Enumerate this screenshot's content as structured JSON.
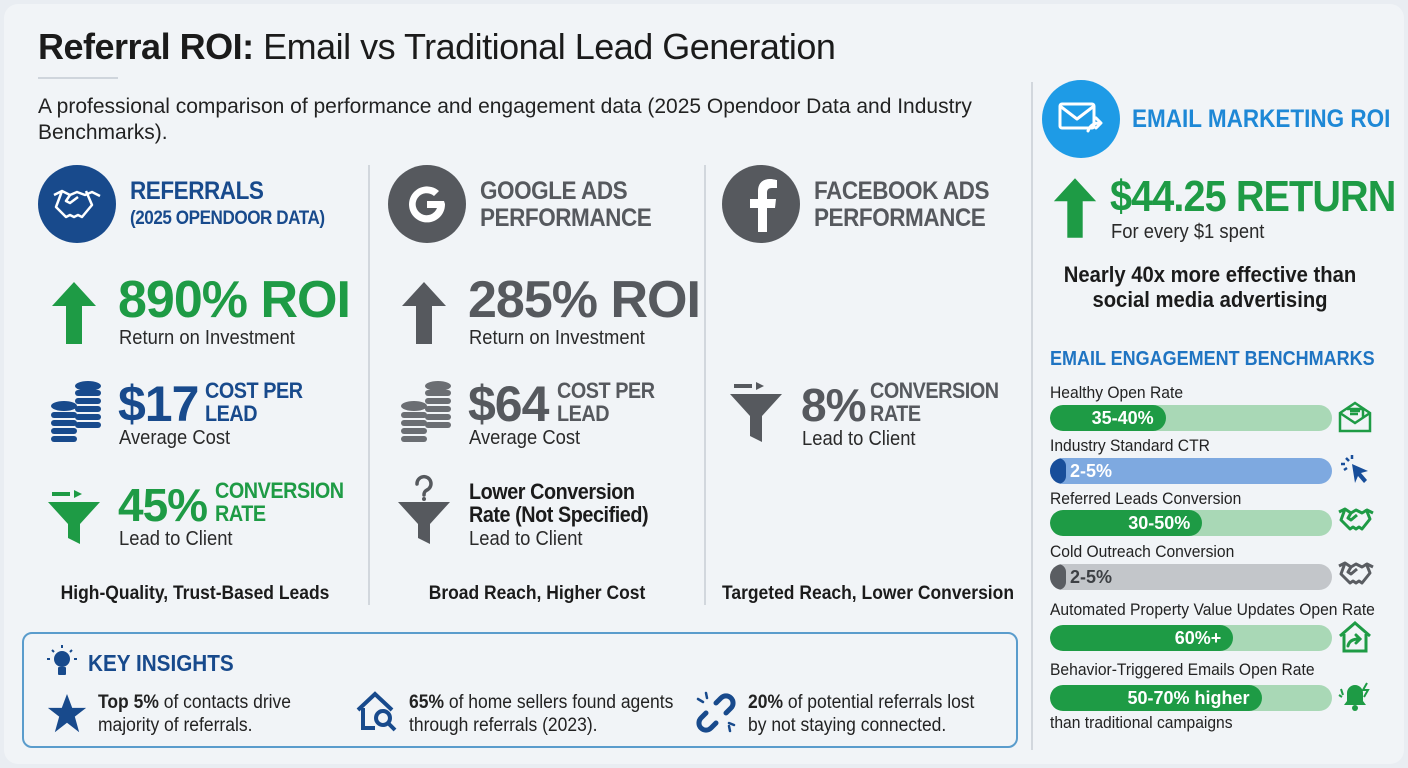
{
  "title": {
    "bold": "Referral ROI:",
    "rest": " Email vs Traditional Lead Generation"
  },
  "subtitle": "A professional comparison of performance and engagement data (2025 Opendoor Data and Industry Benchmarks).",
  "columns": [
    {
      "icon": "handshake-icon",
      "title": "REFERRALS",
      "subtitle": "(2025 OPENDOOR DATA)",
      "roi": "890% ROI",
      "roi_label": "Return on Investment",
      "cost": "$17",
      "cost_unit": "COST PER LEAD",
      "cost_label": "Average Cost",
      "conversion": "45%",
      "conversion_unit": "CONVERSION RATE",
      "conversion_label": "Lead to Client",
      "caption": "High-Quality, Trust-Based Leads"
    },
    {
      "icon": "google-icon",
      "title": "GOOGLE ADS PERFORMANCE",
      "roi": "285% ROI",
      "roi_label": "Return on Investment",
      "cost": "$64",
      "cost_unit": "COST PER LEAD",
      "cost_label": "Average Cost",
      "conversion_text": "Lower Conversion Rate (Not Specified)",
      "conversion_label": "Lead to Client",
      "caption": "Broad Reach, Higher Cost"
    },
    {
      "icon": "facebook-icon",
      "title": "FACEBOOK ADS PERFORMANCE",
      "conversion": "8%",
      "conversion_unit": "CONVERSION RATE",
      "conversion_label": "Lead to Client",
      "caption": "Targeted Reach, Lower Conversion"
    }
  ],
  "insights": {
    "title": "KEY INSIGHTS",
    "items": [
      {
        "bold": "Top 5%",
        "text": " of contacts drive majority of referrals."
      },
      {
        "bold": "65%",
        "text": " of home sellers found agents through referrals (2023)."
      },
      {
        "bold": "20%",
        "text": " of potential referrals lost by not staying connected."
      }
    ]
  },
  "email": {
    "title": "EMAIL MARKETING ROI",
    "return": "$44.25 RETURN",
    "return_label": "For every $1 spent",
    "claim": "Nearly 40x more effective than social media advertising",
    "benchmarks_title": "EMAIL ENGAGEMENT BENCHMARKS",
    "benchmarks": [
      {
        "label": "Healthy Open Rate",
        "value": "35-40%",
        "fill": 0.41,
        "color": "#1e9b45",
        "track": "#a9d8b6",
        "icon": "open-envelope-icon"
      },
      {
        "label": "Industry Standard CTR",
        "value": "2-5%",
        "fill": 0.05,
        "color": "#184e9a",
        "track": "#7ea9e0",
        "icon": "cursor-click-icon"
      },
      {
        "label": "Referred Leads Conversion",
        "value": "30-50%",
        "fill": 0.54,
        "color": "#1e9b45",
        "track": "#a9d8b6",
        "icon": "handshake-icon"
      },
      {
        "label": "Cold Outreach Conversion",
        "value": "2-5%",
        "fill": 0.05,
        "color": "#5a5d62",
        "track": "#c3c6ca",
        "icon": "handshake-icon"
      },
      {
        "label": "Automated Property Value Updates Open Rate",
        "value": "60%+",
        "fill": 0.65,
        "color": "#1e9b45",
        "track": "#a9d8b6",
        "icon": "house-arrow-icon"
      },
      {
        "label": "Behavior-Triggered Emails Open Rate",
        "value": "50-70% higher",
        "fill": 0.75,
        "color": "#1e9b45",
        "track": "#a9d8b6",
        "icon": "bell-alert-icon"
      }
    ],
    "footnote": "than traditional campaigns"
  }
}
